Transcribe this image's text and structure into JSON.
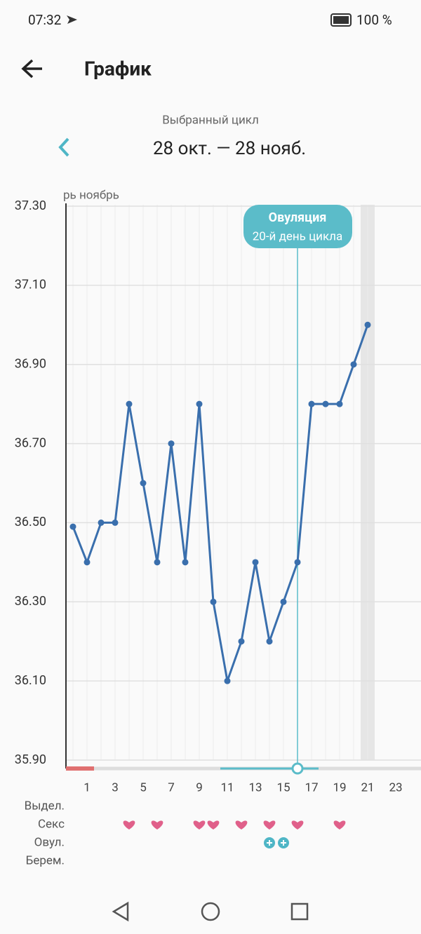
{
  "status_bar": {
    "time": "07:32",
    "battery": "100 %"
  },
  "header": {
    "title": "График"
  },
  "cycle": {
    "label": "Выбранный цикл",
    "range": "28 окт. — 28 нояб."
  },
  "chart_data": {
    "type": "line",
    "month_label": "рь ноябрь",
    "x": [
      0,
      1,
      2,
      3,
      4,
      5,
      6,
      7,
      8,
      9,
      10,
      11,
      12,
      13,
      14,
      15,
      16,
      17,
      18,
      19,
      20,
      21
    ],
    "values": [
      36.49,
      36.4,
      36.5,
      36.5,
      36.8,
      36.6,
      36.4,
      36.7,
      36.4,
      36.8,
      36.3,
      36.1,
      36.2,
      36.4,
      36.2,
      36.3,
      36.4,
      36.8,
      36.8,
      36.8,
      36.9,
      37.0
    ],
    "color": "#3a6fad",
    "xlim": [
      -0.5,
      24.8
    ],
    "xticks": [
      1,
      3,
      5,
      7,
      9,
      11,
      13,
      15,
      17,
      19,
      21,
      23
    ],
    "ylim": [
      35.9,
      37.3
    ],
    "yticks": [
      {
        "value": 35.9,
        "label": "35.90"
      },
      {
        "value": 36.1,
        "label": "36.10"
      },
      {
        "value": 36.3,
        "label": "36.30"
      },
      {
        "value": 36.5,
        "label": "36.50"
      },
      {
        "value": 36.7,
        "label": "36.70"
      },
      {
        "value": 36.9,
        "label": "36.90"
      },
      {
        "value": 37.1,
        "label": "37.10"
      },
      {
        "value": 37.3,
        "label": "37.30"
      }
    ],
    "grid": true,
    "highlight_day": 21,
    "ovulation": {
      "day": 16,
      "title": "Овуляция",
      "subtitle": "20-й день цикла"
    },
    "period": [
      -0.5,
      1.5
    ],
    "fertile": [
      10.5,
      17.5
    ],
    "rows": [
      {
        "label": "Выдел.",
        "days": []
      },
      {
        "label": "Секс",
        "days": [
          4,
          6,
          9,
          10,
          12,
          14,
          16,
          19
        ]
      },
      {
        "label": "Овул.",
        "days": [
          14,
          15
        ]
      },
      {
        "label": "Берем.",
        "days": []
      }
    ]
  }
}
